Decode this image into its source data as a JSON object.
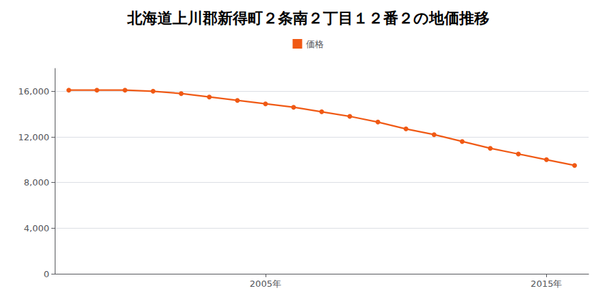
{
  "chart_data": {
    "type": "line",
    "title": "北海道上川郡新得町２条南２丁目１２番２の地価推移",
    "x": [
      1998,
      1999,
      2000,
      2001,
      2002,
      2003,
      2004,
      2005,
      2006,
      2007,
      2008,
      2009,
      2010,
      2011,
      2012,
      2013,
      2014,
      2015,
      2016
    ],
    "series": [
      {
        "name": "価格",
        "color": "#f05914",
        "values": [
          16100,
          16100,
          16100,
          16000,
          15800,
          15500,
          15200,
          14900,
          14600,
          14200,
          13800,
          13300,
          12700,
          12200,
          11600,
          11000,
          10500,
          10000,
          9500
        ]
      }
    ],
    "xlim": [
      1997.5,
      2016.5
    ],
    "xticks": [
      {
        "value": 2005,
        "label": "2005年"
      },
      {
        "value": 2015,
        "label": "2015年"
      }
    ],
    "ylim": [
      0,
      18000
    ],
    "yticks": [
      0,
      {
        "value": 4000,
        "label": "4,000"
      },
      {
        "value": 8000,
        "label": "8,000"
      },
      {
        "value": 12000,
        "label": "12,000"
      },
      {
        "value": 16000,
        "label": "16,000"
      }
    ],
    "grid": true,
    "legend": "top",
    "marker": "circle"
  }
}
